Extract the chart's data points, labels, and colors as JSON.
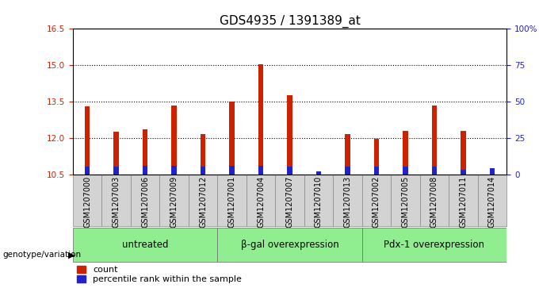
{
  "title": "GDS4935 / 1391389_at",
  "samples": [
    "GSM1207000",
    "GSM1207003",
    "GSM1207006",
    "GSM1207009",
    "GSM1207012",
    "GSM1207001",
    "GSM1207004",
    "GSM1207007",
    "GSM1207010",
    "GSM1207013",
    "GSM1207002",
    "GSM1207005",
    "GSM1207008",
    "GSM1207011",
    "GSM1207014"
  ],
  "count_values": [
    13.3,
    12.25,
    12.35,
    13.35,
    12.15,
    13.5,
    15.05,
    13.75,
    10.6,
    12.15,
    11.95,
    12.3,
    13.35,
    12.3,
    10.75
  ],
  "percentile_values": [
    5,
    5,
    6,
    6,
    5,
    6,
    6,
    5,
    2,
    5,
    5,
    5,
    5,
    3,
    4
  ],
  "base": 10.5,
  "ylim_left": [
    10.5,
    16.5
  ],
  "yticks_left": [
    10.5,
    12.0,
    13.5,
    15.0,
    16.5
  ],
  "yticks_right_values": [
    0,
    25,
    50,
    75,
    100
  ],
  "yticks_right_labels": [
    "0",
    "25",
    "50",
    "75",
    "100%"
  ],
  "groups": [
    {
      "label": "untreated",
      "start": 0,
      "end": 5
    },
    {
      "label": "β-gal overexpression",
      "start": 5,
      "end": 10
    },
    {
      "label": "Pdx-1 overexpression",
      "start": 10,
      "end": 15
    }
  ],
  "group_color": "#90EE90",
  "bar_bg_color": "#FFFFFF",
  "count_color": "#CC2200",
  "percentile_color": "#2222CC",
  "bar_width": 0.18,
  "ylabel_left_color": "#CC2200",
  "ylabel_right_color": "#2222CC",
  "grid_color": "black",
  "grid_linewidth": 0.8,
  "title_fontsize": 11,
  "tick_fontsize": 7.5,
  "group_label_fontsize": 8.5,
  "legend_fontsize": 8,
  "genotype_label": "genotype/variation"
}
